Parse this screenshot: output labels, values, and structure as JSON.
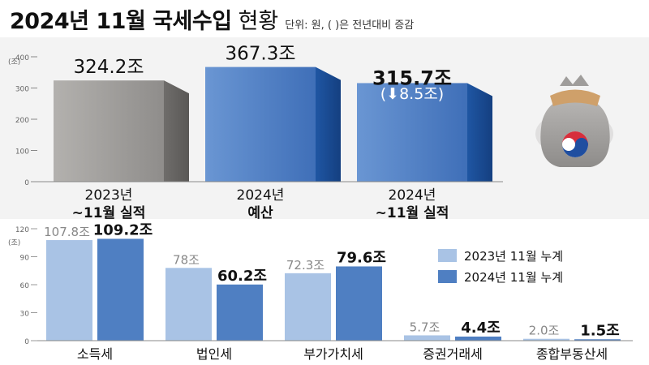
{
  "title": {
    "main": "2024년 11월 국세수입",
    "sub": "현황",
    "unit": "단위: 원, ( )은 전년대비 증감"
  },
  "chart_data": [
    {
      "type": "bar",
      "categories": [
        {
          "line1": "2023년",
          "line2": "~11월 실적"
        },
        {
          "line1": "2024년",
          "line2": "예산"
        },
        {
          "line1": "2024년",
          "line2": "~11월 실적"
        }
      ],
      "values": [
        324.2,
        367.3,
        315.7
      ],
      "value_labels": [
        "324.2조",
        "367.3조",
        "315.7조"
      ],
      "annotation": "(⬇8.5조)",
      "yunit": "(조)",
      "yticks": [
        "400",
        "300",
        "200",
        "100",
        "0"
      ],
      "ylim": [
        0,
        400
      ],
      "colors": [
        "#9c9a98",
        "#4f80c6",
        "#4f80c6"
      ]
    },
    {
      "type": "bar",
      "categories": [
        "소득세",
        "법인세",
        "부가가치세",
        "증권거래세",
        "종합부동산세"
      ],
      "yunit": "(조)",
      "yticks": [
        "120",
        "90",
        "60",
        "30",
        "0"
      ],
      "ylim": [
        0,
        120
      ],
      "legend_position": "right",
      "series": [
        {
          "name": "2023년 11월 누계",
          "values": [
            107.8,
            78,
            72.3,
            5.7,
            2.0
          ],
          "labels": [
            "107.8조",
            "78조",
            "72.3조",
            "5.7조",
            "2.0조"
          ],
          "color": "#a9c3e5"
        },
        {
          "name": "2024년 11월 누계",
          "values": [
            109.2,
            60.2,
            79.6,
            4.4,
            1.5
          ],
          "labels": [
            "109.2조",
            "60.2조",
            "79.6조",
            "4.4조",
            "1.5조"
          ],
          "color": "#4f7fc2"
        }
      ]
    }
  ],
  "icon": "money-bag-taegeuk-icon"
}
